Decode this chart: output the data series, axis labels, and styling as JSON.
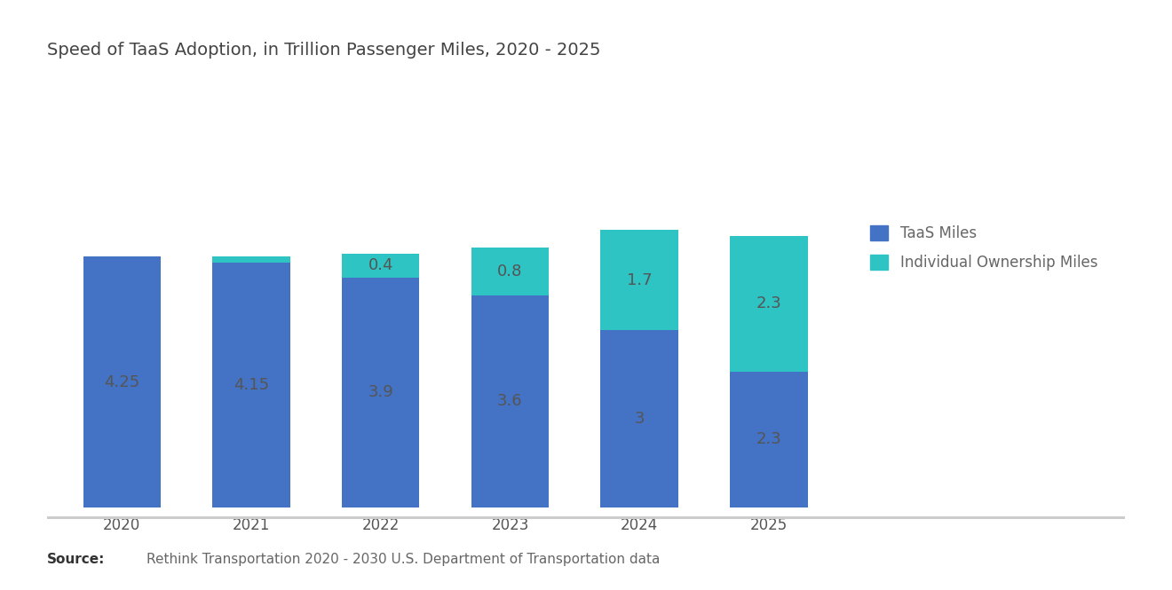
{
  "title": "Speed of TaaS Adoption, in Trillion Passenger Miles, 2020 - 2025",
  "years": [
    "2020",
    "2021",
    "2022",
    "2023",
    "2024",
    "2025"
  ],
  "taas_miles": [
    4.25,
    4.15,
    3.9,
    3.6,
    3.0,
    2.3
  ],
  "individual_miles": [
    0.0,
    0.1,
    0.4,
    0.8,
    1.7,
    2.3
  ],
  "taas_labels": [
    "4.25",
    "4.15",
    "3.9",
    "3.6",
    "3",
    "2.3"
  ],
  "individual_labels": [
    "",
    "",
    "0.4",
    "0.8",
    "1.7",
    "2.3"
  ],
  "taas_color": "#4472C4",
  "individual_color": "#2EC4C4",
  "background_color": "#FFFFFF",
  "title_fontsize": 14,
  "label_fontsize": 13,
  "tick_fontsize": 12,
  "legend_fontsize": 12,
  "bar_width": 0.6,
  "source_text": "Rethink Transportation 2020 - 2030 U.S. Department of Transportation data",
  "source_bold": "Source:",
  "legend_labels": [
    "TaaS Miles",
    "Individual Ownership Miles"
  ],
  "ylim": [
    0,
    7.0
  ],
  "label_color": "#555555"
}
